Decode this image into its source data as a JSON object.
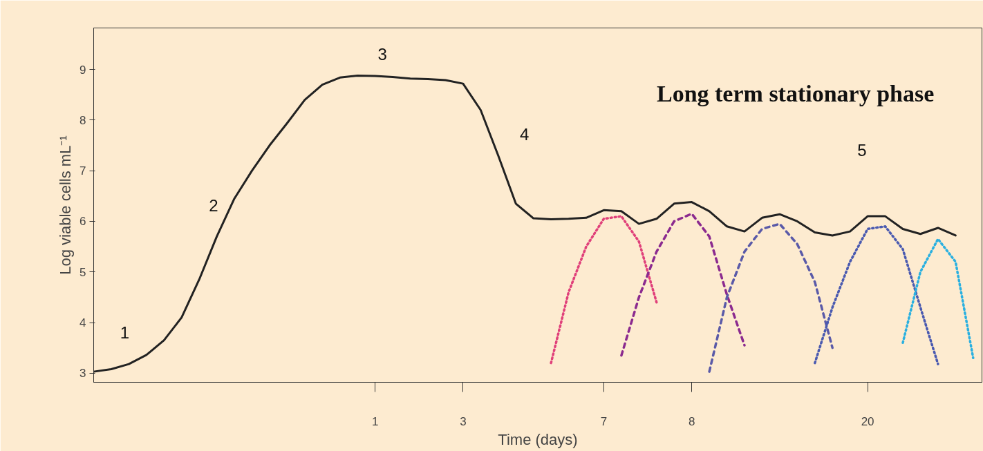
{
  "chart_data": {
    "type": "line",
    "xlabel": "Time (days)",
    "ylabel": "Log viable cells mL⁻¹",
    "categories": [
      null,
      null,
      null,
      null,
      null,
      null,
      null,
      null,
      null,
      null,
      null,
      null,
      null,
      null,
      null,
      null,
      "1",
      null,
      null,
      null,
      null,
      "3",
      null,
      null,
      null,
      null,
      null,
      null,
      null,
      "7",
      null,
      null,
      null,
      null,
      "8",
      null,
      null,
      null,
      null,
      null,
      null,
      null,
      null,
      null,
      "20",
      null,
      null,
      null,
      null,
      null,
      null
    ],
    "ylim": [
      2.82,
      9.82
    ],
    "yticks": [
      3,
      4,
      5,
      6,
      7,
      8,
      9
    ],
    "grid": false,
    "marker": "none",
    "series": [
      {
        "color": "#222222",
        "line_style": "solid",
        "values": [
          3.03,
          3.08,
          3.18,
          3.36,
          3.65,
          4.1,
          4.85,
          5.7,
          6.45,
          7.0,
          7.5,
          7.94,
          8.4,
          8.7,
          8.84,
          8.88,
          8.87,
          8.85,
          8.82,
          8.81,
          8.79,
          8.72,
          8.2,
          7.3,
          6.35,
          6.06,
          6.04,
          6.05,
          6.07,
          6.22,
          6.2,
          5.95,
          6.05,
          6.35,
          6.38,
          6.2,
          5.9,
          5.8,
          6.07,
          6.14,
          6.0,
          5.78,
          5.72,
          5.8,
          6.1,
          6.1,
          5.85,
          5.75,
          5.87,
          5.72,
          null
        ]
      },
      {
        "color": "#e0407a",
        "line_style": "dotted",
        "values": [
          null,
          null,
          null,
          null,
          null,
          null,
          null,
          null,
          null,
          null,
          null,
          null,
          null,
          null,
          null,
          null,
          null,
          null,
          null,
          null,
          null,
          null,
          null,
          null,
          null,
          null,
          3.2,
          4.6,
          5.5,
          6.05,
          6.1,
          5.6,
          4.4,
          null,
          null,
          null,
          null,
          null,
          null,
          null,
          null,
          null,
          null,
          null,
          null,
          null,
          null,
          null,
          null,
          null,
          null
        ]
      },
      {
        "color": "#8b2a8f",
        "line_style": "dashed",
        "values": [
          null,
          null,
          null,
          null,
          null,
          null,
          null,
          null,
          null,
          null,
          null,
          null,
          null,
          null,
          null,
          null,
          null,
          null,
          null,
          null,
          null,
          null,
          null,
          null,
          null,
          null,
          null,
          null,
          null,
          null,
          3.35,
          4.5,
          5.4,
          6.0,
          6.15,
          5.7,
          4.55,
          3.55,
          null,
          null,
          null,
          null,
          null,
          null,
          null,
          null,
          null,
          null,
          null,
          null,
          null
        ]
      },
      {
        "color": "#5a5aa8",
        "line_style": "dashed",
        "values": [
          null,
          null,
          null,
          null,
          null,
          null,
          null,
          null,
          null,
          null,
          null,
          null,
          null,
          null,
          null,
          null,
          null,
          null,
          null,
          null,
          null,
          null,
          null,
          null,
          null,
          null,
          null,
          null,
          null,
          null,
          null,
          null,
          null,
          null,
          null,
          3.03,
          4.5,
          5.4,
          5.85,
          5.95,
          5.55,
          4.8,
          3.5,
          null,
          null,
          null,
          null,
          null,
          null,
          null,
          null
        ]
      },
      {
        "color": "#4a5ab0",
        "line_style": "dotted",
        "values": [
          null,
          null,
          null,
          null,
          null,
          null,
          null,
          null,
          null,
          null,
          null,
          null,
          null,
          null,
          null,
          null,
          null,
          null,
          null,
          null,
          null,
          null,
          null,
          null,
          null,
          null,
          null,
          null,
          null,
          null,
          null,
          null,
          null,
          null,
          null,
          null,
          null,
          null,
          null,
          null,
          null,
          3.2,
          4.3,
          5.2,
          5.85,
          5.9,
          5.45,
          4.3,
          3.18,
          null,
          null
        ]
      },
      {
        "color": "#2ab0e0",
        "line_style": "dotted",
        "values": [
          null,
          null,
          null,
          null,
          null,
          null,
          null,
          null,
          null,
          null,
          null,
          null,
          null,
          null,
          null,
          null,
          null,
          null,
          null,
          null,
          null,
          null,
          null,
          null,
          null,
          null,
          null,
          null,
          null,
          null,
          null,
          null,
          null,
          null,
          null,
          null,
          null,
          null,
          null,
          null,
          null,
          null,
          null,
          null,
          null,
          null,
          3.6,
          5.0,
          5.65,
          5.2,
          3.3
        ]
      }
    ],
    "annotations": [
      "1",
      "2",
      "3",
      "4",
      "5",
      "Long term stationary phase"
    ]
  }
}
